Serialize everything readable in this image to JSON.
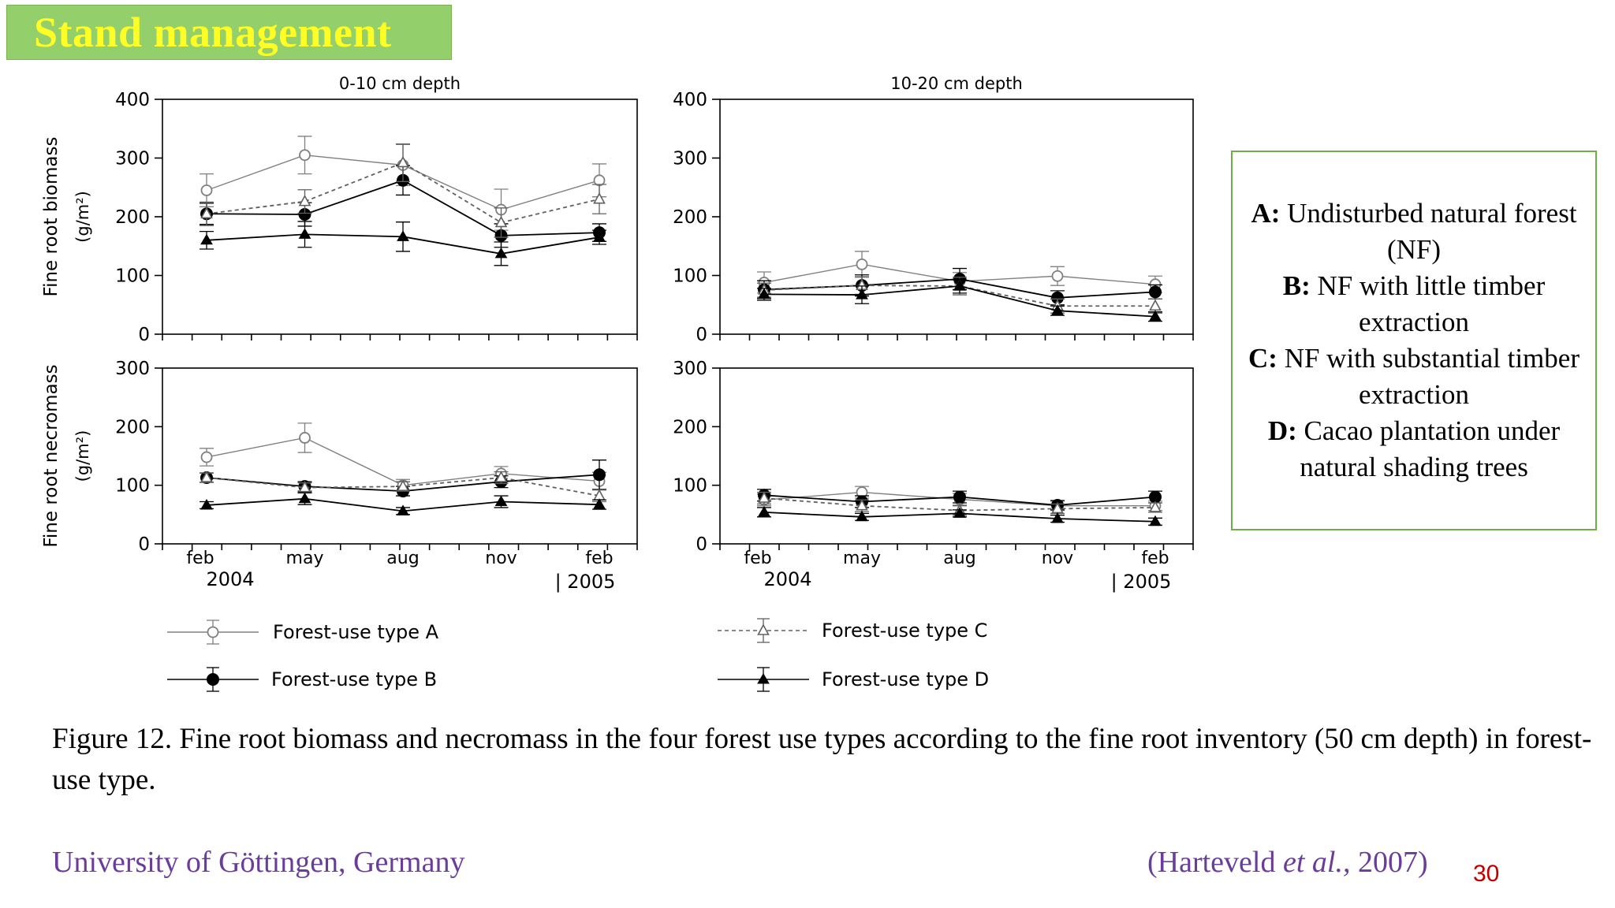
{
  "slide": {
    "title": "Stand management",
    "page_number": "30"
  },
  "legend_box": {
    "entries": [
      {
        "key": "A:",
        "text": "Undisturbed natural forest (NF)"
      },
      {
        "key": "B:",
        "text": "NF with little timber extraction"
      },
      {
        "key": "C:",
        "text": "NF with substantial timber extraction"
      },
      {
        "key": "D:",
        "text": "Cacao plantation under natural shading trees"
      }
    ]
  },
  "caption": "Figure 12. Fine root biomass and necromass in the four forest use types according to the fine root inventory (50 cm depth) in forest-use type.",
  "footer": {
    "institution": "University of Göttingen, Germany",
    "citation_pre": "(Harteveld ",
    "citation_italic": "et al.,",
    "citation_post": " 2007)"
  },
  "colors": {
    "title_bg": "#93cf6a",
    "title_text": "#ffff26",
    "legend_border": "#70ad47",
    "footer_text": "#6a3d9a",
    "page_number": "#c00000",
    "series_A": "#808080",
    "series_B": "#000000",
    "series_C": "#606060",
    "series_D": "#000000"
  },
  "chart_data": [
    {
      "type": "line",
      "title": "0-10 cm depth",
      "ylabel": "Fine root biomass (g/m²)",
      "ylim": [
        0,
        400
      ],
      "yticks": [
        0,
        100,
        200,
        300,
        400
      ],
      "x": [
        "feb",
        "may",
        "aug",
        "nov",
        "feb"
      ],
      "year_labels": [
        "2004",
        "| 2005"
      ],
      "series": [
        {
          "name": "Forest-use type A",
          "values": [
            245,
            305,
            288,
            212,
            262
          ],
          "errors": [
            28,
            32,
            35,
            35,
            28
          ]
        },
        {
          "name": "Forest-use type B",
          "values": [
            205,
            204,
            262,
            168,
            173
          ],
          "errors": [
            18,
            20,
            25,
            20,
            15
          ]
        },
        {
          "name": "Forest-use type C",
          "values": [
            205,
            226,
            292,
            190,
            230
          ],
          "errors": [
            20,
            20,
            32,
            25,
            25
          ]
        },
        {
          "name": "Forest-use type D",
          "values": [
            160,
            170,
            166,
            137,
            165
          ],
          "errors": [
            15,
            22,
            25,
            20,
            12
          ]
        }
      ]
    },
    {
      "type": "line",
      "title": "10-20 cm depth",
      "ylim": [
        0,
        400
      ],
      "yticks": [
        0,
        100,
        200,
        300,
        400
      ],
      "x": [
        "feb",
        "may",
        "aug",
        "nov",
        "feb"
      ],
      "year_labels": [
        "2004",
        "| 2005"
      ],
      "series": [
        {
          "name": "Forest-use type A",
          "values": [
            88,
            119,
            90,
            99,
            85
          ],
          "errors": [
            18,
            22,
            15,
            16,
            14
          ]
        },
        {
          "name": "Forest-use type B",
          "values": [
            76,
            83,
            94,
            62,
            72
          ],
          "errors": [
            15,
            18,
            18,
            12,
            12
          ]
        },
        {
          "name": "Forest-use type C",
          "values": [
            75,
            83,
            82,
            48,
            48
          ],
          "errors": [
            12,
            15,
            15,
            12,
            12
          ]
        },
        {
          "name": "Forest-use type D",
          "values": [
            68,
            67,
            82,
            40,
            30
          ],
          "errors": [
            10,
            15,
            12,
            8,
            8
          ]
        }
      ]
    },
    {
      "type": "line",
      "ylabel": "Fine root necromass (g/m²)",
      "ylim": [
        0,
        300
      ],
      "yticks": [
        0,
        100,
        200,
        300
      ],
      "x": [
        "feb",
        "may",
        "aug",
        "nov",
        "feb"
      ],
      "year_labels": [
        "2004",
        "| 2005"
      ],
      "series": [
        {
          "name": "Forest-use type A",
          "values": [
            148,
            181,
            100,
            120,
            107
          ],
          "errors": [
            15,
            25,
            10,
            12,
            15
          ]
        },
        {
          "name": "Forest-use type B",
          "values": [
            113,
            98,
            90,
            106,
            118
          ],
          "errors": [
            8,
            8,
            8,
            10,
            25
          ]
        },
        {
          "name": "Forest-use type C",
          "values": [
            113,
            96,
            98,
            113,
            82
          ],
          "errors": [
            8,
            8,
            8,
            10,
            10
          ]
        },
        {
          "name": "Forest-use type D",
          "values": [
            66,
            77,
            56,
            72,
            67
          ],
          "errors": [
            6,
            10,
            6,
            10,
            8
          ]
        }
      ]
    },
    {
      "type": "line",
      "ylim": [
        0,
        300
      ],
      "yticks": [
        0,
        100,
        200,
        300
      ],
      "x": [
        "feb",
        "may",
        "aug",
        "nov",
        "feb"
      ],
      "year_labels": [
        "2004",
        "| 2005"
      ],
      "series": [
        {
          "name": "Forest-use type A",
          "values": [
            75,
            88,
            76,
            65,
            65
          ],
          "errors": [
            10,
            10,
            10,
            8,
            8
          ]
        },
        {
          "name": "Forest-use type B",
          "values": [
            83,
            72,
            80,
            66,
            80
          ],
          "errors": [
            10,
            10,
            10,
            8,
            10
          ]
        },
        {
          "name": "Forest-use type C",
          "values": [
            78,
            65,
            57,
            60,
            62
          ],
          "errors": [
            10,
            10,
            8,
            8,
            8
          ]
        },
        {
          "name": "Forest-use type D",
          "values": [
            54,
            46,
            52,
            43,
            38
          ],
          "errors": [
            8,
            6,
            6,
            6,
            6
          ]
        }
      ]
    }
  ],
  "chart_legend": [
    {
      "series": "A",
      "label": "Forest-use type A"
    },
    {
      "series": "B",
      "label": "Forest-use type B"
    },
    {
      "series": "C",
      "label": "Forest-use type C"
    },
    {
      "series": "D",
      "label": "Forest-use type D"
    }
  ]
}
